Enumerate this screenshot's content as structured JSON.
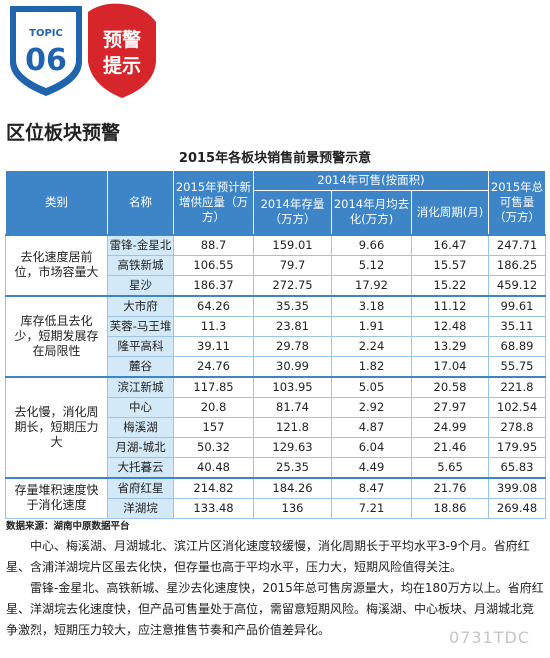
{
  "header": {
    "topic_label": "TOPIC",
    "topic_number": "06",
    "tag_line1": "预警",
    "tag_line2": "提示"
  },
  "section_title": "区位板块预警",
  "table": {
    "title": "2015年各板块销售前景预警示意",
    "headers": {
      "category": "类别",
      "name": "名称",
      "supply_2015": "2015年预计新增供应量（万方）",
      "group_2014": "2014年可售(按面积)",
      "stock_2014": "2014年存量（万方）",
      "monthly_2014": "2014年月均去化(万方)",
      "cycle": "消化周期(月)",
      "total_2015": "2015年总可售量（万方）"
    },
    "groups": [
      {
        "category": "去化速度居前位，市场容量大",
        "rows": [
          [
            "雷锋-金星北",
            "88.7",
            "159.01",
            "9.66",
            "16.47",
            "247.71"
          ],
          [
            "高铁新城",
            "106.55",
            "79.7",
            "5.12",
            "15.57",
            "186.25"
          ],
          [
            "星沙",
            "186.37",
            "272.75",
            "17.92",
            "15.22",
            "459.12"
          ]
        ]
      },
      {
        "category": "库存低且去化少，短期发展存在局限性",
        "rows": [
          [
            "大市府",
            "64.26",
            "35.35",
            "3.18",
            "11.12",
            "99.61"
          ],
          [
            "芙蓉-马王堆",
            "11.3",
            "23.81",
            "1.91",
            "12.48",
            "35.11"
          ],
          [
            "隆平高科",
            "39.11",
            "29.78",
            "2.24",
            "13.29",
            "68.89"
          ],
          [
            "麓谷",
            "24.76",
            "30.99",
            "1.82",
            "17.04",
            "55.75"
          ]
        ]
      },
      {
        "category": "去化慢，消化周期长，短期压力大",
        "rows": [
          [
            "滨江新城",
            "117.85",
            "103.95",
            "5.05",
            "20.58",
            "221.8"
          ],
          [
            "中心",
            "20.8",
            "81.74",
            "2.92",
            "27.97",
            "102.54"
          ],
          [
            "梅溪湖",
            "157",
            "121.8",
            "4.87",
            "24.99",
            "278.8"
          ],
          [
            "月湖-城北",
            "50.32",
            "129.63",
            "6.04",
            "21.46",
            "179.95"
          ],
          [
            "大托暮云",
            "40.48",
            "25.35",
            "4.49",
            "5.65",
            "65.83"
          ]
        ]
      },
      {
        "category": "存量堆积速度快于消化速度",
        "rows": [
          [
            "省府红星",
            "214.82",
            "184.26",
            "8.47",
            "21.76",
            "399.08"
          ],
          [
            "洋湖垸",
            "133.48",
            "136",
            "7.21",
            "18.86",
            "269.48"
          ]
        ]
      }
    ],
    "source": "数据来源：湖南中原数据平台"
  },
  "paragraphs": [
    "中心、梅溪湖、月湖城北、滨江片区消化速度较缓慢，消化周期长于平均水平3-9个月。省府红星、含浦洋湖垸片区虽去化快，但存量也高于平均水平，压力大，短期风险值得关注。",
    "雷锋-金星北、高铁新城、星沙去化速度快，2015年总可售房源量大，均在180万方以上。省府红星、洋湖垸去化速度快，但产品可售量处于高位，需留意短期风险。梅溪湖、中心板块、月湖城北竞争激烈，短期压力较大，应注意推售节奏和产品价值差异化。"
  ],
  "watermark": "0731TDC"
}
